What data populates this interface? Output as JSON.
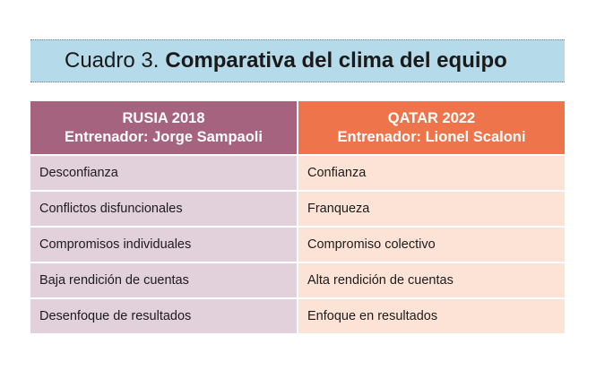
{
  "title": {
    "prefix": "Cuadro 3.",
    "main": "Comparativa del clima del equipo"
  },
  "table": {
    "headers": [
      {
        "line1": "RUSIA 2018",
        "line2": "Entrenador: Jorge Sampaoli"
      },
      {
        "line1": "QATAR 2022",
        "line2": "Entrenador: Lionel Scaloni"
      }
    ],
    "rows": [
      [
        "Desconfianza",
        "Confianza"
      ],
      [
        "Conflictos disfuncionales",
        "Franqueza"
      ],
      [
        "Compromisos individuales",
        "Compromiso colectivo"
      ],
      [
        "Baja rendición de cuentas",
        "Alta rendición de cuentas"
      ],
      [
        "Desenfoque de resultados",
        "Enfoque en resultados"
      ]
    ]
  },
  "colors": {
    "title_background": "#b5dbea",
    "left_header": "#a6637f",
    "right_header": "#ee754b",
    "left_cells": "#e2d0db",
    "right_cells": "#fde3d6"
  }
}
